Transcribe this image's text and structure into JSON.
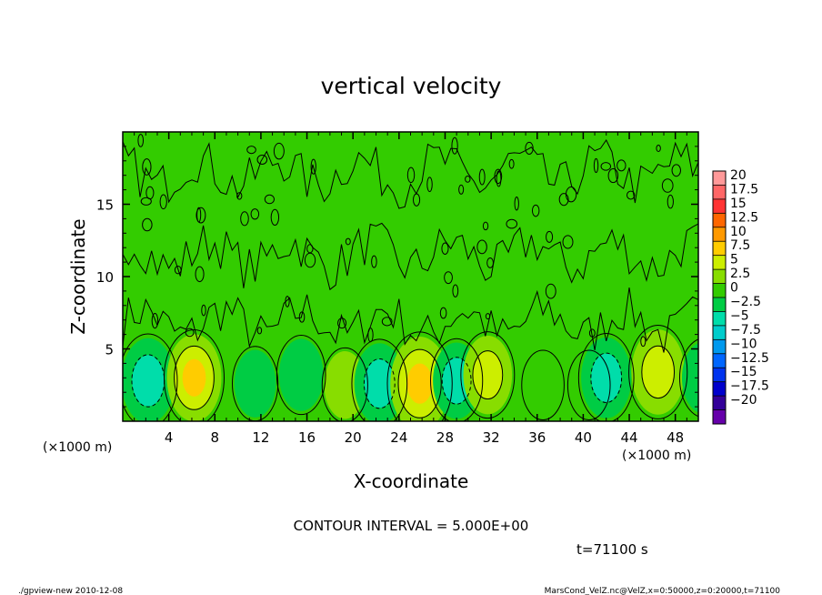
{
  "chart_data": {
    "type": "heatmap",
    "title": "vertical velocity",
    "xlabel": "X-coordinate",
    "ylabel": "Z-coordinate",
    "x_unit_left": "(×1000 m)",
    "x_unit_right": "(×1000 m)",
    "xlim": [
      0,
      50
    ],
    "ylim": [
      0,
      20
    ],
    "x_ticks": [
      4,
      8,
      12,
      16,
      20,
      24,
      28,
      32,
      36,
      40,
      44,
      48
    ],
    "y_ticks": [
      5,
      10,
      15
    ],
    "contour_interval_text": "CONTOUR INTERVAL = 5.000E+00",
    "time_text": "t=71100 s",
    "footer_left": "./gpview-new  2010-12-08",
    "footer_right": "MarsCond_VelZ.nc@VelZ,x=0:50000,z=0:20000,t=71100",
    "colorbar": {
      "levels": [
        20,
        17.5,
        15,
        12.5,
        10,
        7.5,
        5,
        2.5,
        0,
        -2.5,
        -5,
        -7.5,
        -10,
        -12.5,
        -15,
        -17.5,
        -20
      ],
      "colors": [
        "#ff9999",
        "#ff6666",
        "#ff3333",
        "#ff6600",
        "#ff9900",
        "#ffcc00",
        "#ccee00",
        "#88dd00",
        "#33cc00",
        "#00cc44",
        "#00ddaa",
        "#00cccc",
        "#0099ee",
        "#0066ff",
        "#0033ee",
        "#0000cc",
        "#330099",
        "#6600aa"
      ]
    },
    "features": [
      {
        "x": 2.2,
        "z": 2.8,
        "w": -7
      },
      {
        "x": 6.2,
        "z": 3.0,
        "w": 7.5
      },
      {
        "x": 11.5,
        "z": 2.6,
        "w": -3
      },
      {
        "x": 15.5,
        "z": 3.2,
        "w": -4
      },
      {
        "x": 19.3,
        "z": 2.5,
        "w": 3
      },
      {
        "x": 22.3,
        "z": 2.6,
        "w": -6
      },
      {
        "x": 25.8,
        "z": 2.6,
        "w": 9
      },
      {
        "x": 29.0,
        "z": 2.8,
        "w": -5
      },
      {
        "x": 31.7,
        "z": 3.2,
        "w": 5.5
      },
      {
        "x": 36.5,
        "z": 2.5,
        "w": -2
      },
      {
        "x": 40.5,
        "z": 2.5,
        "w": 2
      },
      {
        "x": 42.0,
        "z": 3.0,
        "w": -6
      },
      {
        "x": 46.5,
        "z": 3.4,
        "w": 7
      },
      {
        "x": 50.5,
        "z": 3.0,
        "w": -4
      }
    ]
  }
}
